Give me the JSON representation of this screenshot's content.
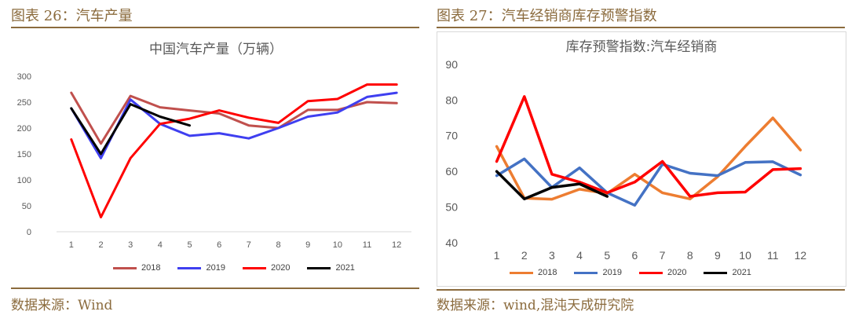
{
  "left": {
    "header": "图表 26：汽车产量",
    "source": "数据来源：Wind"
  },
  "right": {
    "header": "图表 27：汽车经销商库存预警指数",
    "source": "数据来源：wind,混沌天成研究院"
  },
  "colors": {
    "header_text": "#8b6b3d",
    "rule": "#8b6b3d"
  },
  "chart_data": [
    {
      "type": "line",
      "title": "中国汽车产量（万辆）",
      "x": [
        1,
        2,
        3,
        4,
        5,
        6,
        7,
        8,
        9,
        10,
        11,
        12
      ],
      "ylim": [
        0,
        300
      ],
      "yticks": [
        0,
        50,
        100,
        150,
        200,
        250,
        300
      ],
      "grid": false,
      "legend": "bottom",
      "series": [
        {
          "name": "2018",
          "color": "#c0504d",
          "values": [
            268,
            170,
            262,
            240,
            234,
            228,
            205,
            200,
            235,
            235,
            250,
            248
          ]
        },
        {
          "name": "2019",
          "color": "#3f3ff0",
          "values": [
            238,
            142,
            255,
            208,
            185,
            190,
            180,
            200,
            222,
            230,
            260,
            268
          ]
        },
        {
          "name": "2020",
          "color": "#ff0000",
          "values": [
            178,
            28,
            142,
            208,
            218,
            234,
            220,
            210,
            252,
            256,
            284,
            284
          ]
        },
        {
          "name": "2021",
          "color": "#000000",
          "values": [
            238,
            150,
            246,
            222,
            205,
            null,
            null,
            null,
            null,
            null,
            null,
            null
          ]
        }
      ]
    },
    {
      "type": "line",
      "title": "库存预警指数:汽车经销商",
      "x": [
        1,
        2,
        3,
        4,
        5,
        6,
        7,
        8,
        9,
        10,
        11,
        12
      ],
      "ylim": [
        40,
        90
      ],
      "yticks": [
        40,
        50,
        60,
        70,
        80,
        90
      ],
      "grid": false,
      "legend": "bottom",
      "series": [
        {
          "name": "2018",
          "color": "#ed7d31",
          "values": [
            67,
            52.5,
            52.2,
            55,
            53.8,
            59.2,
            54,
            52.3,
            58.5,
            67,
            75,
            66
          ]
        },
        {
          "name": "2019",
          "color": "#4472c4",
          "values": [
            58.8,
            63.5,
            55.5,
            61,
            54,
            50.5,
            62,
            59.5,
            58.8,
            62.5,
            62.7,
            59
          ]
        },
        {
          "name": "2020",
          "color": "#ff0000",
          "values": [
            62.8,
            81,
            59.2,
            57,
            54,
            57,
            62.8,
            53,
            54,
            54.2,
            60.5,
            60.8
          ]
        },
        {
          "name": "2021",
          "color": "#000000",
          "values": [
            60,
            52.3,
            55.5,
            56.5,
            53,
            null,
            null,
            null,
            null,
            null,
            null,
            null
          ]
        }
      ]
    }
  ]
}
